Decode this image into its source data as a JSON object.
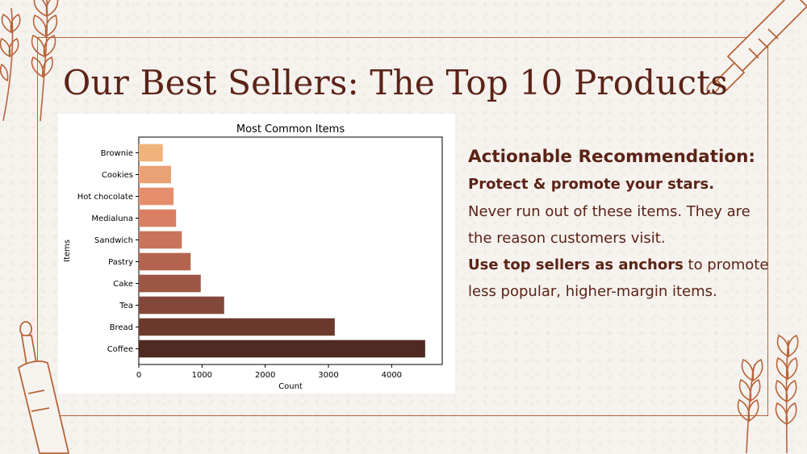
{
  "slide": {
    "title": "Our Best Sellers: The Top 10 Products"
  },
  "recommendation": {
    "heading": "Actionable Recommendation:",
    "subheading": "Protect & promote your stars.",
    "body1": "Never run out of these items. They are the reason customers visit.",
    "body2_bold": "Use top sellers as anchors",
    "body2_rest": " to promote less popular, higher-margin items."
  },
  "colors": {
    "accent": "#5b2316",
    "frame": "#b8643a"
  },
  "chart_data": {
    "type": "bar",
    "orientation": "horizontal",
    "title": "Most Common Items",
    "xlabel": "Count",
    "ylabel": "Items",
    "xlim": [
      0,
      4800
    ],
    "xticks": [
      0,
      1000,
      2000,
      3000,
      4000
    ],
    "grid": false,
    "categories": [
      "Coffee",
      "Bread",
      "Tea",
      "Cake",
      "Pastry",
      "Sandwich",
      "Medialuna",
      "Hot chocolate",
      "Cookies",
      "Brownie"
    ],
    "values": [
      4530,
      3100,
      1350,
      980,
      820,
      680,
      590,
      550,
      510,
      380
    ],
    "colors": [
      "#4f2a22",
      "#6b3a2d",
      "#84483a",
      "#9c5644",
      "#b3644f",
      "#c8735b",
      "#d97f63",
      "#e58e6d",
      "#eba176",
      "#f0b37b"
    ]
  }
}
